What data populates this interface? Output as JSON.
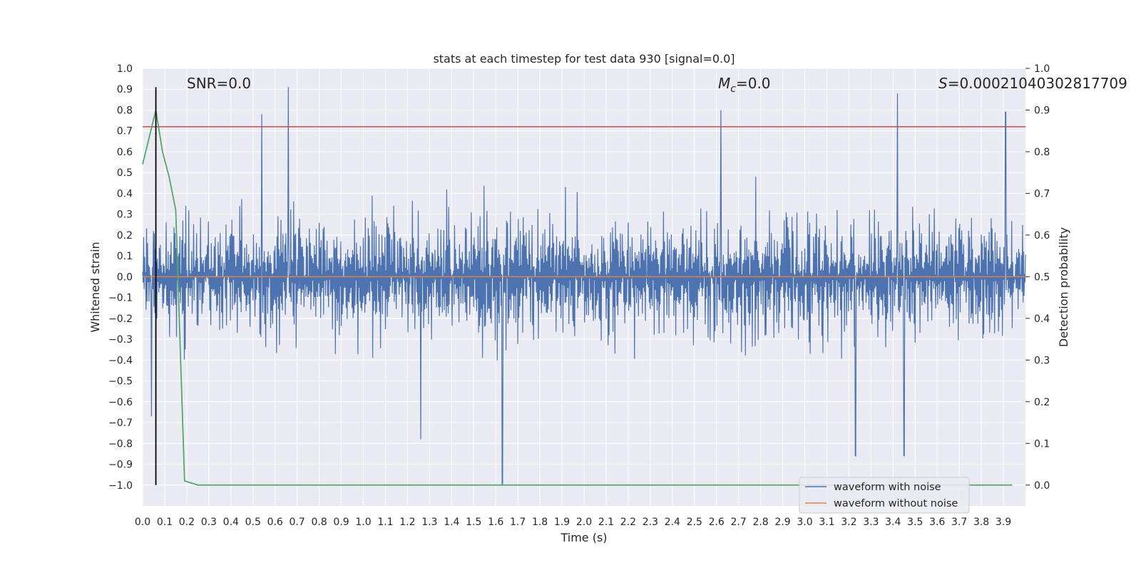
{
  "chart_data": {
    "type": "line",
    "title": "stats at each timestep for test data 930 [signal=0.0]",
    "xlabel": "Time (s)",
    "ylabel_left": "Whitened strain",
    "ylabel_right": "Detection probability",
    "xlim": [
      0.0,
      4.0
    ],
    "ylim_left": [
      -1.1,
      1.0
    ],
    "ylim_right": [
      -0.05,
      1.0
    ],
    "x_ticks": [
      "0.0",
      "0.1",
      "0.2",
      "0.3",
      "0.4",
      "0.5",
      "0.6",
      "0.7",
      "0.8",
      "0.9",
      "1.0",
      "1.1",
      "1.2",
      "1.3",
      "1.4",
      "1.5",
      "1.6",
      "1.7",
      "1.8",
      "1.9",
      "2.0",
      "2.1",
      "2.2",
      "2.3",
      "2.4",
      "2.5",
      "2.6",
      "2.7",
      "2.8",
      "2.9",
      "3.0",
      "3.1",
      "3.2",
      "3.3",
      "3.4",
      "3.5",
      "3.6",
      "3.7",
      "3.8",
      "3.9"
    ],
    "y_ticks_left": [
      "1.0",
      "0.9",
      "0.8",
      "0.7",
      "0.6",
      "0.5",
      "0.4",
      "0.3",
      "0.2",
      "0.1",
      "0.0",
      "−0.1",
      "−0.2",
      "−0.3",
      "−0.4",
      "−0.5",
      "−0.6",
      "−0.7",
      "−0.8",
      "−0.9",
      "−1.0"
    ],
    "y_ticks_right": [
      "1.0",
      "0.9",
      "0.8",
      "0.7",
      "0.6",
      "0.5",
      "0.4",
      "0.3",
      "0.2",
      "0.1",
      "0.0"
    ],
    "grid": true,
    "legend_position": "lower-right",
    "annotations": {
      "snr": "SNR=0.0",
      "mc_symbol": "M",
      "mc_sub": "c",
      "mc_value": "=0.0",
      "s_symbol": "S",
      "s_value": "=0.00021040302817709"
    },
    "series": [
      {
        "name": "waveform with noise",
        "axis": "left",
        "color": "#4c72b0",
        "style": "noise",
        "amplitude_range": [
          -1.0,
          0.91
        ],
        "x_range": [
          0.0,
          4.0
        ],
        "notable_peaks": [
          [
            0.66,
            0.91
          ],
          [
            3.42,
            0.88
          ],
          [
            0.54,
            0.78
          ],
          [
            3.91,
            0.79
          ],
          [
            2.62,
            0.8
          ]
        ],
        "notable_dips": [
          [
            1.63,
            -1.0
          ],
          [
            3.23,
            -0.86
          ],
          [
            3.45,
            -0.86
          ],
          [
            1.26,
            -0.78
          ],
          [
            0.04,
            -0.67
          ]
        ]
      },
      {
        "name": "waveform without noise",
        "axis": "left",
        "color": "#dd8452",
        "x": [
          0.0,
          4.0
        ],
        "y": [
          0.0,
          0.0
        ]
      },
      {
        "name": "",
        "axis": "right",
        "color": "#55a868",
        "x": [
          0.0,
          0.06,
          0.09,
          0.12,
          0.15,
          0.19,
          0.25,
          0.3,
          0.5,
          1.0,
          2.0,
          3.0,
          3.94
        ],
        "y": [
          0.77,
          0.9,
          0.8,
          0.74,
          0.66,
          0.01,
          0.0,
          0.0,
          0.0,
          0.0,
          0.0,
          0.0,
          0.0
        ]
      }
    ],
    "threshold": {
      "axis": "left",
      "y": 0.72,
      "color": "#c44e52"
    },
    "marker": {
      "axis": "left",
      "x": 0.06,
      "y_range": [
        -1.0,
        0.91
      ],
      "color": "#000000"
    }
  }
}
